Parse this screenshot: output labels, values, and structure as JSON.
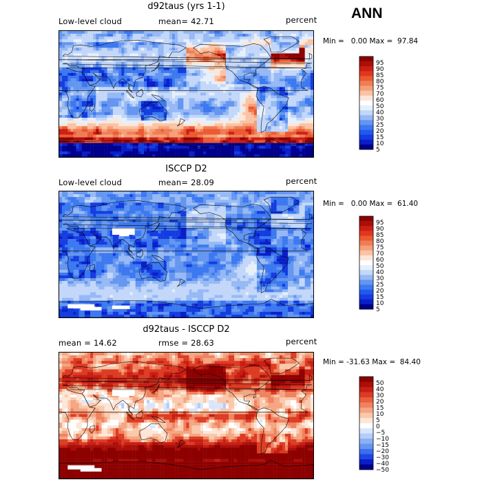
{
  "main_title": "ANN",
  "colors": {
    "abs_scale": [
      "#00008c",
      "#0a1ec8",
      "#143ce0",
      "#1e5af0",
      "#3c78f0",
      "#6496f0",
      "#96b9f5",
      "#c3d7fa",
      "#e6f0fc",
      "#ffffff",
      "#fce6d7",
      "#fac3a5",
      "#f5a078",
      "#f07d55",
      "#eb5a32",
      "#e1371e",
      "#cd1e14",
      "#aa0f0a",
      "#8c0000"
    ],
    "diff_scale": [
      "#00008c",
      "#0a1ec8",
      "#1e46e6",
      "#3c6ef0",
      "#6496f0",
      "#8caff5",
      "#b4cdfa",
      "#d7e6fc",
      "#ffffff",
      "#fce6d7",
      "#fac8aa",
      "#f5a582",
      "#f08260",
      "#eb5f3c",
      "#dc3c23",
      "#c81e14",
      "#aa0f0a",
      "#8c0000"
    ]
  },
  "chart_data": [
    {
      "type": "heatmap",
      "title": "d92taus (yrs 1-1)",
      "left_label": "Low-level cloud",
      "center_label": "mean=  42.71",
      "right_label": "percent",
      "min_max": "Min =   0.00 Max =  97.84",
      "colorbar_levels": [
        "95",
        "90",
        "85",
        "80",
        "75",
        "70",
        "60",
        "50",
        "40",
        "30",
        "25",
        "20",
        "15",
        "10",
        "5"
      ],
      "mean": 42.71,
      "min": 0.0,
      "max": 97.84
    },
    {
      "type": "heatmap",
      "title": "ISCCP D2",
      "left_label": "Low-level cloud",
      "center_label": "mean=  28.09",
      "right_label": "percent",
      "min_max": "Min =   0.00 Max =  61.40",
      "colorbar_levels": [
        "95",
        "90",
        "85",
        "80",
        "75",
        "70",
        "60",
        "50",
        "40",
        "30",
        "25",
        "20",
        "15",
        "10",
        "5"
      ],
      "mean": 28.09,
      "min": 0.0,
      "max": 61.4
    },
    {
      "type": "heatmap",
      "title": "d92taus - ISCCP D2",
      "left_label": "mean =  14.62",
      "center_label": "rmse =  28.63",
      "right_label": "percent",
      "min_max": "Min = -31.63 Max =  84.40",
      "colorbar_levels": [
        "50",
        "40",
        "30",
        "20",
        "15",
        "10",
        "5",
        "0",
        "−5",
        "−10",
        "−15",
        "−20",
        "−30",
        "−40",
        "−50"
      ],
      "mean": 14.62,
      "rmse": 28.63,
      "min": -31.63,
      "max": 84.4
    }
  ]
}
